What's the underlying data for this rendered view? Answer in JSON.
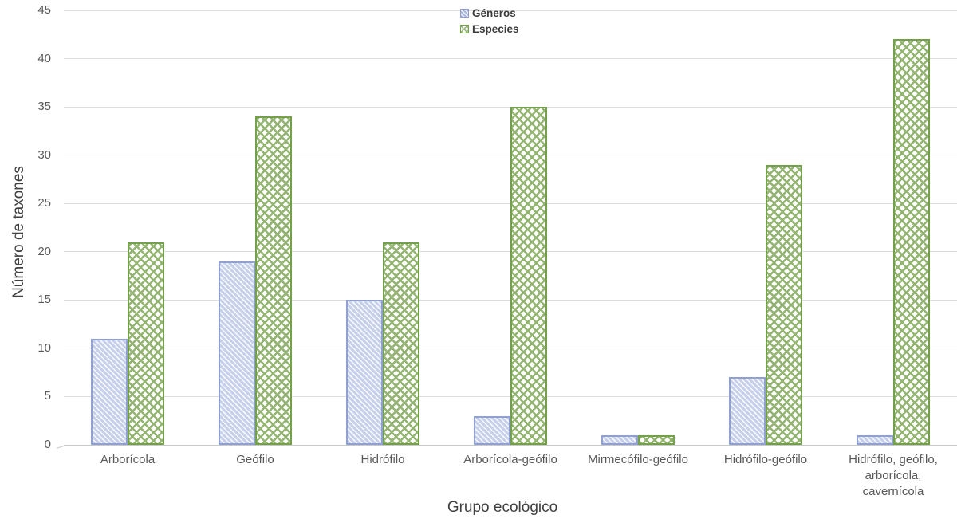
{
  "chart_data": {
    "type": "bar",
    "title": "",
    "xlabel": "Grupo ecológico",
    "ylabel": "Número de taxones",
    "categories": [
      "Arborícola",
      "Geófilo",
      "Hidrófilo",
      "Arborícola-geófilo",
      "Mirmecófilo-geófilo",
      "Hidrófilo-geófilo",
      "Hidrófilo, geófilo, arborícola, cavernícola"
    ],
    "series": [
      {
        "name": "Géneros",
        "values": [
          11,
          19,
          15,
          3,
          1,
          7,
          1
        ],
        "pattern": "thin-diagonal-stripe",
        "fill_color": "#c6d0ea",
        "border_color": "#8fa0d1"
      },
      {
        "name": "Especies",
        "values": [
          21,
          34,
          21,
          35,
          1,
          29,
          42
        ],
        "pattern": "trellis-crosshatch",
        "fill_color": "#93b571",
        "border_color": "#72a04b"
      }
    ],
    "ylim": [
      0,
      45
    ],
    "yticks": [
      0,
      5,
      10,
      15,
      20,
      25,
      30,
      35,
      40,
      45
    ],
    "grid": "horizontal",
    "gridline_color": "#dcdcdc",
    "tick_label_color": "#595959",
    "axis_title_color": "#404040",
    "legend_position": "top-center",
    "legend_entries": [
      {
        "label": "Géneros",
        "swatch": "blue-diagonal-hatch-swatch"
      },
      {
        "label": "Especies",
        "swatch": "green-trellis-hatch-swatch"
      }
    ]
  }
}
